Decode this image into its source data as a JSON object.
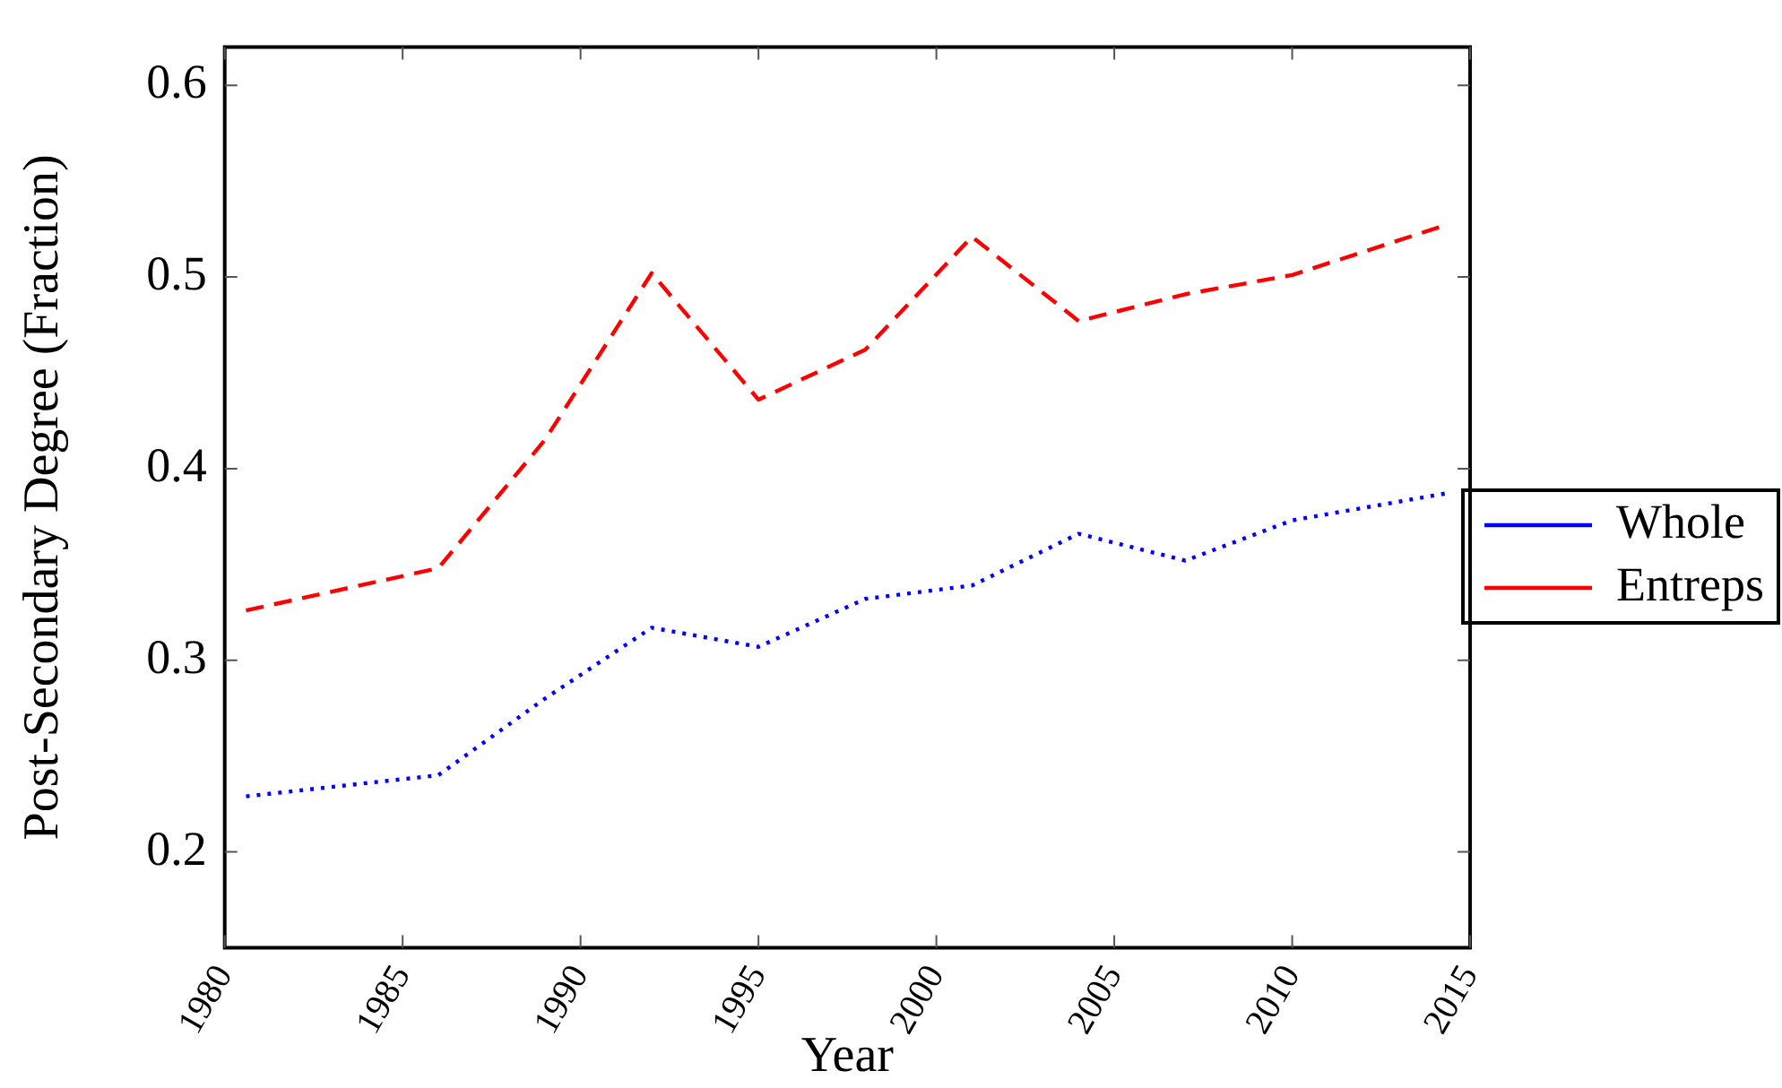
{
  "chart_data": {
    "type": "line",
    "xlabel": "Year",
    "ylabel": "Post-Secondary Degree (Fraction)",
    "x": [
      1980.6,
      1986,
      1989,
      1992,
      1995,
      1998,
      2001,
      2004,
      2007,
      2010,
      2014.3
    ],
    "series": [
      {
        "name": "Whole",
        "color": "#0000ff",
        "line_style": "dotted",
        "values": [
          0.229,
          0.24,
          0.28,
          0.317,
          0.307,
          0.332,
          0.339,
          0.366,
          0.352,
          0.373,
          0.387
        ]
      },
      {
        "name": "Entreps",
        "color": "#ff0000",
        "line_style": "dashed",
        "values": [
          0.326,
          0.348,
          0.415,
          0.502,
          0.436,
          0.462,
          0.521,
          0.477,
          0.491,
          0.501,
          0.527
        ]
      }
    ],
    "xlim": [
      1980,
      2015
    ],
    "xticks": [
      1980,
      1985,
      1990,
      1995,
      2000,
      2005,
      2010,
      2015
    ],
    "ylim": [
      0.15,
      0.62
    ],
    "yticks": [
      0.2,
      0.3,
      0.4,
      0.5,
      0.6
    ],
    "grid": false,
    "legend": "right",
    "marker": "none"
  }
}
